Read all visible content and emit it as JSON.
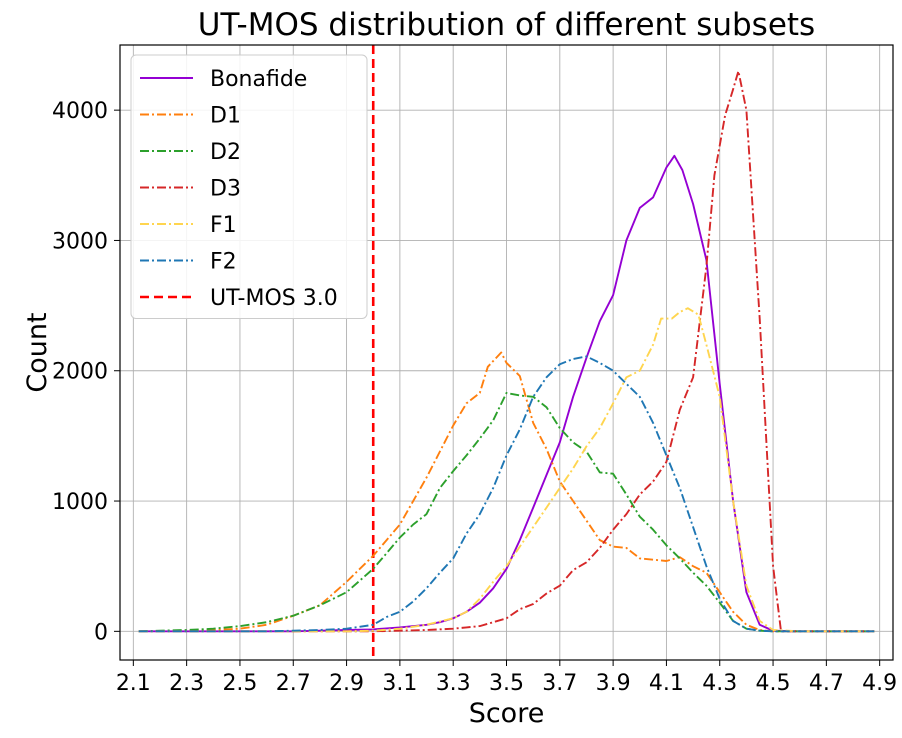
{
  "chart_data": {
    "type": "line",
    "title": "UT-MOS distribution of different subsets",
    "xlabel": "Score",
    "ylabel": "Count",
    "xlim": [
      2.05,
      4.95
    ],
    "ylim": [
      -220,
      4500
    ],
    "xticks": [
      2.1,
      2.3,
      2.5,
      2.7,
      2.9,
      3.1,
      3.3,
      3.5,
      3.7,
      3.9,
      4.1,
      4.3,
      4.5,
      4.7,
      4.9
    ],
    "xtick_labels": [
      "2.1",
      "2.3",
      "2.5",
      "2.7",
      "2.9",
      "3.1",
      "3.3",
      "3.5",
      "3.7",
      "3.9",
      "4.1",
      "4.3",
      "4.5",
      "4.7",
      "4.9"
    ],
    "yticks": [
      0,
      1000,
      2000,
      3000,
      4000
    ],
    "ytick_labels": [
      "0",
      "1000",
      "2000",
      "3000",
      "4000"
    ],
    "grid": true,
    "legend_position": "top-left",
    "series": [
      {
        "name": "Bonafide",
        "color": "#9400d3",
        "style": "solid",
        "x": [
          2.12,
          2.2,
          2.3,
          2.4,
          2.5,
          2.6,
          2.7,
          2.8,
          2.9,
          3.0,
          3.1,
          3.2,
          3.25,
          3.3,
          3.35,
          3.4,
          3.45,
          3.5,
          3.55,
          3.6,
          3.65,
          3.7,
          3.75,
          3.8,
          3.85,
          3.9,
          3.95,
          4.0,
          4.05,
          4.1,
          4.13,
          4.16,
          4.2,
          4.25,
          4.3,
          4.35,
          4.4,
          4.45,
          4.5,
          4.6,
          4.7,
          4.8,
          4.88
        ],
        "y": [
          0,
          0,
          0,
          0,
          0,
          0,
          0,
          5,
          10,
          15,
          30,
          50,
          70,
          100,
          150,
          220,
          330,
          480,
          700,
          950,
          1200,
          1450,
          1800,
          2100,
          2380,
          2580,
          3000,
          3250,
          3330,
          3560,
          3650,
          3540,
          3280,
          2850,
          1900,
          1000,
          300,
          50,
          5,
          0,
          0,
          0,
          0
        ]
      },
      {
        "name": "D1",
        "color": "#ff7f0e",
        "style": "dashdot",
        "x": [
          2.12,
          2.2,
          2.3,
          2.4,
          2.5,
          2.6,
          2.7,
          2.8,
          2.9,
          3.0,
          3.05,
          3.1,
          3.15,
          3.2,
          3.25,
          3.3,
          3.35,
          3.4,
          3.43,
          3.48,
          3.5,
          3.55,
          3.6,
          3.65,
          3.7,
          3.75,
          3.8,
          3.85,
          3.9,
          3.95,
          4.0,
          4.05,
          4.1,
          4.15,
          4.2,
          4.25,
          4.3,
          4.35,
          4.4,
          4.45,
          4.5,
          4.6,
          4.7,
          4.8,
          4.88
        ],
        "y": [
          0,
          0,
          5,
          10,
          20,
          50,
          120,
          200,
          380,
          580,
          700,
          820,
          1000,
          1180,
          1380,
          1580,
          1750,
          1830,
          2030,
          2140,
          2060,
          1960,
          1600,
          1400,
          1150,
          1000,
          850,
          700,
          650,
          640,
          560,
          550,
          540,
          570,
          500,
          450,
          300,
          150,
          50,
          10,
          0,
          0,
          0,
          0,
          0
        ]
      },
      {
        "name": "D2",
        "color": "#2ca02c",
        "style": "dashdot",
        "x": [
          2.12,
          2.2,
          2.3,
          2.4,
          2.5,
          2.6,
          2.7,
          2.8,
          2.9,
          3.0,
          3.05,
          3.1,
          3.15,
          3.2,
          3.25,
          3.3,
          3.35,
          3.4,
          3.45,
          3.5,
          3.55,
          3.6,
          3.65,
          3.7,
          3.75,
          3.8,
          3.85,
          3.9,
          3.95,
          4.0,
          4.05,
          4.1,
          4.15,
          4.2,
          4.25,
          4.3,
          4.35,
          4.4,
          4.45,
          4.5,
          4.6,
          4.7,
          4.8,
          4.88
        ],
        "y": [
          0,
          5,
          10,
          20,
          40,
          70,
          120,
          200,
          300,
          480,
          600,
          720,
          820,
          900,
          1100,
          1230,
          1350,
          1480,
          1620,
          1830,
          1810,
          1800,
          1720,
          1560,
          1450,
          1380,
          1220,
          1210,
          1050,
          880,
          780,
          660,
          560,
          450,
          350,
          220,
          80,
          20,
          5,
          0,
          0,
          0,
          0,
          0
        ]
      },
      {
        "name": "D3",
        "color": "#d62728",
        "style": "dashdot",
        "x": [
          2.12,
          2.2,
          2.3,
          2.4,
          2.5,
          2.6,
          2.7,
          2.8,
          2.9,
          3.0,
          3.1,
          3.2,
          3.3,
          3.35,
          3.4,
          3.45,
          3.5,
          3.55,
          3.6,
          3.65,
          3.7,
          3.75,
          3.8,
          3.85,
          3.9,
          3.95,
          4.0,
          4.05,
          4.1,
          4.15,
          4.2,
          4.25,
          4.28,
          4.32,
          4.35,
          4.37,
          4.4,
          4.45,
          4.5,
          4.53,
          4.6,
          4.7,
          4.8,
          4.88
        ],
        "y": [
          0,
          0,
          0,
          0,
          0,
          0,
          0,
          0,
          0,
          0,
          5,
          10,
          20,
          30,
          40,
          70,
          100,
          170,
          210,
          290,
          350,
          470,
          530,
          640,
          780,
          900,
          1050,
          1150,
          1300,
          1700,
          1950,
          2800,
          3500,
          3960,
          4160,
          4300,
          4000,
          2400,
          500,
          0,
          0,
          0,
          0,
          0
        ]
      },
      {
        "name": "F1",
        "color": "#ffd54f",
        "style": "dashdot",
        "x": [
          2.12,
          2.2,
          2.3,
          2.4,
          2.5,
          2.6,
          2.7,
          2.8,
          2.9,
          3.0,
          3.1,
          3.2,
          3.3,
          3.35,
          3.4,
          3.45,
          3.5,
          3.55,
          3.6,
          3.65,
          3.7,
          3.75,
          3.8,
          3.85,
          3.9,
          3.95,
          4.0,
          4.05,
          4.08,
          4.12,
          4.15,
          4.18,
          4.22,
          4.25,
          4.3,
          4.35,
          4.4,
          4.45,
          4.5,
          4.6,
          4.7,
          4.8,
          4.88
        ],
        "y": [
          0,
          0,
          0,
          0,
          0,
          0,
          0,
          0,
          0,
          5,
          20,
          50,
          100,
          150,
          250,
          380,
          500,
          650,
          800,
          950,
          1100,
          1250,
          1420,
          1560,
          1750,
          1950,
          2000,
          2200,
          2400,
          2400,
          2450,
          2480,
          2430,
          2200,
          1800,
          1000,
          350,
          80,
          10,
          0,
          0,
          0,
          0
        ]
      },
      {
        "name": "F2",
        "color": "#1f77b4",
        "style": "dashdot",
        "x": [
          2.12,
          2.2,
          2.3,
          2.4,
          2.5,
          2.6,
          2.7,
          2.8,
          2.9,
          3.0,
          3.05,
          3.1,
          3.15,
          3.2,
          3.25,
          3.3,
          3.35,
          3.4,
          3.45,
          3.5,
          3.55,
          3.6,
          3.65,
          3.7,
          3.75,
          3.8,
          3.85,
          3.9,
          3.95,
          4.0,
          4.05,
          4.1,
          4.15,
          4.2,
          4.25,
          4.3,
          4.35,
          4.4,
          4.45,
          4.5,
          4.6,
          4.7,
          4.8,
          4.88
        ],
        "y": [
          0,
          0,
          0,
          0,
          0,
          0,
          5,
          10,
          20,
          50,
          110,
          150,
          230,
          330,
          450,
          560,
          750,
          900,
          1100,
          1350,
          1550,
          1800,
          1950,
          2050,
          2090,
          2110,
          2060,
          2000,
          1900,
          1800,
          1600,
          1350,
          1100,
          800,
          500,
          250,
          80,
          20,
          5,
          0,
          0,
          0,
          0,
          0
        ]
      }
    ],
    "reference_line": {
      "name": "UT-MOS 3.0",
      "x": 3.0,
      "color": "#ff0000",
      "style": "dashed"
    }
  }
}
